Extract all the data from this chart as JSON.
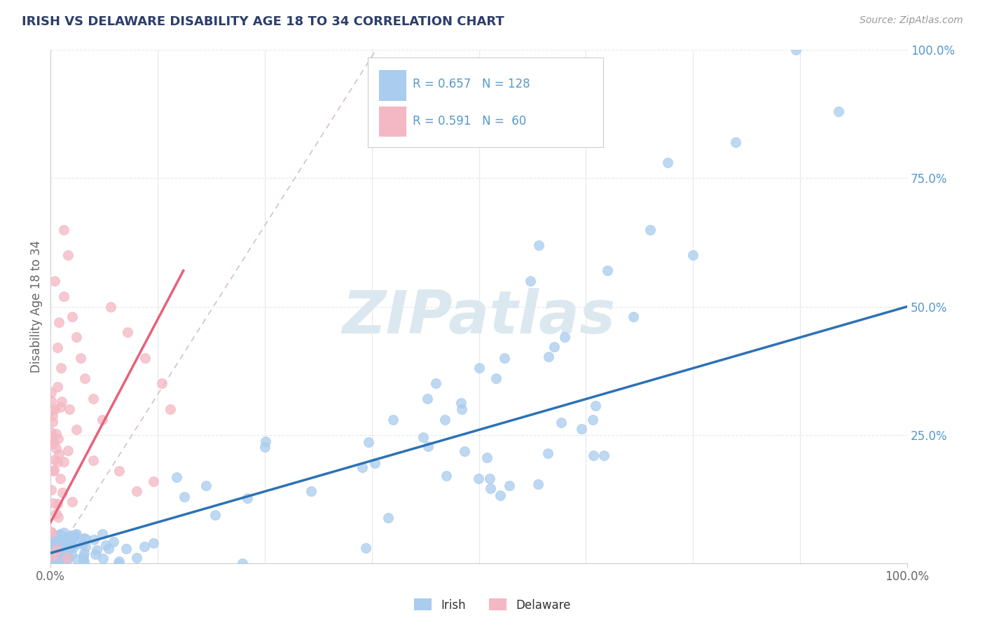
{
  "title": "IRISH VS DELAWARE DISABILITY AGE 18 TO 34 CORRELATION CHART",
  "source_text": "Source: ZipAtlas.com",
  "ylabel": "Disability Age 18 to 34",
  "xlim": [
    0.0,
    1.0
  ],
  "ylim": [
    0.0,
    1.0
  ],
  "irish_color": "#aaccee",
  "delaware_color": "#f4b8c4",
  "irish_line_color": "#2c72b5",
  "delaware_line_color": "#e8607a",
  "ref_line_color": "#d0b8c8",
  "background_color": "#ffffff",
  "grid_color": "#e8e8e8",
  "watermark": "ZIPatlas",
  "watermark_color": "#dce8f0",
  "title_color": "#2c3e6b",
  "source_color": "#999999",
  "tick_label_color": "#5599cc",
  "axis_label_color": "#666666",
  "irish_R": 0.657,
  "irish_N": 128,
  "delaware_R": 0.591,
  "delaware_N": 60,
  "legend_R1_text": "R = 0.657   N = 128",
  "legend_R2_text": "R = 0.591   N =  60"
}
